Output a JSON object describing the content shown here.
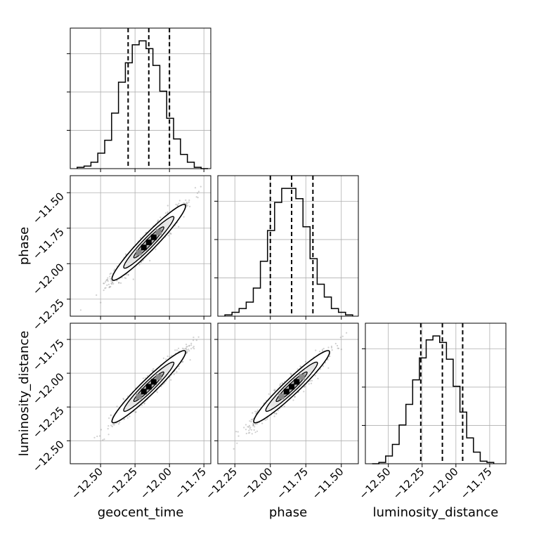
{
  "chart_data": {
    "type": "corner",
    "parameters": [
      "geocent_time",
      "phase",
      "luminosity_distance"
    ],
    "axis_labels": {
      "x": [
        "geocent_time",
        "phase",
        "luminosity_distance"
      ],
      "y": [
        "phase",
        "luminosity_distance"
      ]
    },
    "ranges": {
      "geocent_time": [
        -12.72,
        -11.7
      ],
      "phase": [
        -12.37,
        -11.38
      ],
      "luminosity_distance": [
        -12.67,
        -11.63
      ]
    },
    "ticks": {
      "geocent_time": [
        -12.5,
        -12.25,
        -12.0,
        -11.75
      ],
      "phase": [
        -12.25,
        -12.0,
        -11.75,
        -11.5
      ],
      "luminosity_distance": [
        -12.5,
        -12.25,
        -12.0,
        -11.75
      ]
    },
    "tick_labels": {
      "geocent_time": [
        "−12.50",
        "−12.25",
        "−12.00",
        "−11.75"
      ],
      "phase": [
        "−12.25",
        "−12.00",
        "−11.75",
        "−11.50"
      ],
      "luminosity_distance": [
        "−12.50",
        "−12.25",
        "−12.00",
        "−11.75"
      ]
    },
    "quantiles": {
      "geocent_time": [
        -12.3,
        -12.15,
        -12.0
      ],
      "phase": [
        -12.0,
        -11.85,
        -11.7
      ],
      "luminosity_distance": [
        -12.26,
        -12.1,
        -11.95
      ]
    },
    "histograms": {
      "geocent_time": {
        "bin_edges": [
          -12.67,
          -12.62,
          -12.57,
          -12.52,
          -12.47,
          -12.42,
          -12.37,
          -12.32,
          -12.27,
          -12.22,
          -12.17,
          -12.12,
          -12.07,
          -12.02,
          -11.97,
          -11.92,
          -11.87,
          -11.82,
          -11.77,
          -11.72
        ],
        "counts": [
          1,
          2,
          5,
          12,
          22,
          43,
          67,
          82,
          96,
          99,
          93,
          80,
          60,
          39,
          23,
          11,
          5,
          1,
          0
        ]
      },
      "phase": {
        "bin_edges": [
          -12.32,
          -12.27,
          -12.22,
          -12.17,
          -12.12,
          -12.07,
          -12.02,
          -11.97,
          -11.92,
          -11.87,
          -11.82,
          -11.77,
          -11.72,
          -11.67,
          -11.62,
          -11.57,
          -11.52,
          -11.47,
          -11.42
        ],
        "counts": [
          1,
          3,
          6,
          11,
          22,
          43,
          67,
          89,
          100,
          100,
          92,
          70,
          45,
          25,
          15,
          6,
          3,
          1
        ]
      },
      "luminosity_distance": {
        "bin_edges": [
          -12.62,
          -12.57,
          -12.52,
          -12.47,
          -12.42,
          -12.37,
          -12.32,
          -12.27,
          -12.22,
          -12.17,
          -12.12,
          -12.07,
          -12.02,
          -11.97,
          -11.92,
          -11.87,
          -11.82,
          -11.77,
          -11.72
        ],
        "counts": [
          0,
          1,
          6,
          15,
          30,
          46,
          65,
          82,
          96,
          99,
          94,
          81,
          60,
          40,
          20,
          9,
          2,
          1
        ]
      }
    },
    "pairs": [
      {
        "x": "geocent_time",
        "y": "phase",
        "center": [
          -12.15,
          -11.85
        ],
        "slope": 1.0,
        "sigma_major": 0.17,
        "sigma_minor": 0.025
      },
      {
        "x": "geocent_time",
        "y": "luminosity_distance",
        "center": [
          -12.15,
          -12.1
        ],
        "slope": 1.0,
        "sigma_major": 0.17,
        "sigma_minor": 0.025
      },
      {
        "x": "phase",
        "y": "luminosity_distance",
        "center": [
          -11.85,
          -12.1
        ],
        "slope": 1.0,
        "sigma_major": 0.17,
        "sigma_minor": 0.025
      }
    ],
    "grid": true
  }
}
